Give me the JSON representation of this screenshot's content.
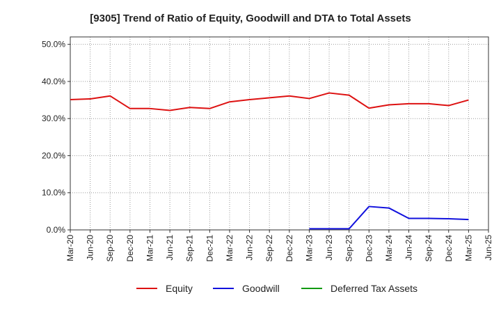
{
  "chart_data": {
    "type": "line",
    "title": "[9305]  Trend of Ratio of Equity, Goodwill and DTA to Total Assets",
    "xlabel": "",
    "ylabel": "",
    "ylim": [
      0,
      52
    ],
    "y_ticks": [
      0,
      10,
      20,
      30,
      40,
      50
    ],
    "y_tick_labels": [
      "0.0%",
      "10.0%",
      "20.0%",
      "30.0%",
      "40.0%",
      "50.0%"
    ],
    "categories": [
      "Mar-20",
      "Jun-20",
      "Sep-20",
      "Dec-20",
      "Mar-21",
      "Jun-21",
      "Sep-21",
      "Dec-21",
      "Mar-22",
      "Jun-22",
      "Sep-22",
      "Dec-22",
      "Mar-23",
      "Jun-23",
      "Sep-23",
      "Dec-23",
      "Mar-24",
      "Jun-24",
      "Sep-24",
      "Dec-24",
      "Mar-25",
      "Jun-25"
    ],
    "grid": true,
    "legend_position": "bottom",
    "series": [
      {
        "name": "Equity",
        "color": "#dd1111",
        "values": [
          35.1,
          35.3,
          36.1,
          32.7,
          32.7,
          32.2,
          33.0,
          32.7,
          34.5,
          35.1,
          35.6,
          36.1,
          35.4,
          36.9,
          36.3,
          32.8,
          33.7,
          34.0,
          34.0,
          33.5,
          35.0,
          null
        ]
      },
      {
        "name": "Goodwill",
        "color": "#1111dd",
        "values": [
          null,
          null,
          null,
          null,
          null,
          null,
          null,
          null,
          null,
          null,
          null,
          null,
          0.3,
          0.3,
          0.3,
          6.3,
          5.9,
          3.1,
          3.1,
          3.0,
          2.8,
          null
        ]
      },
      {
        "name": "Deferred Tax Assets",
        "color": "#119911",
        "values": [
          null,
          null,
          null,
          null,
          null,
          null,
          null,
          null,
          null,
          null,
          null,
          null,
          null,
          null,
          null,
          null,
          null,
          null,
          null,
          null,
          null,
          null
        ]
      }
    ]
  }
}
